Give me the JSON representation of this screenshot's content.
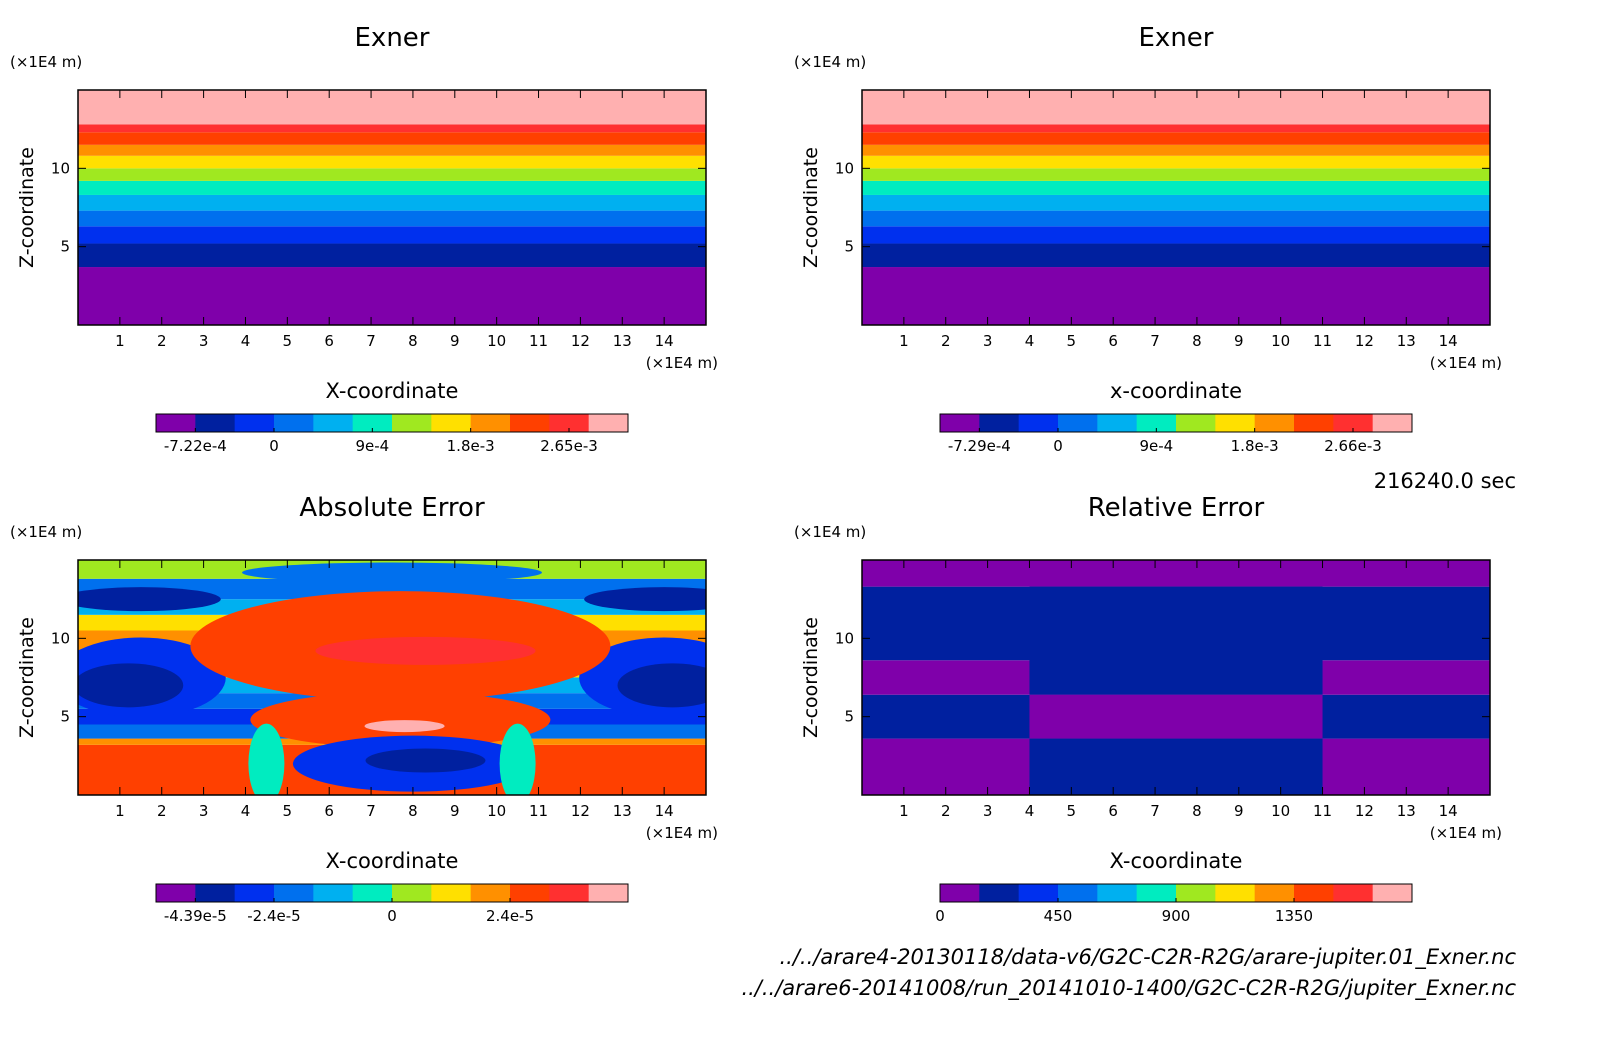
{
  "time_label": "216240.0 sec",
  "files": [
    "../../arare4-20130118/data-v6/G2C-C2R-R2G/arare-jupiter.01_Exner.nc",
    "../../arare6-20141008/run_20141010-1400/G2C-C2R-R2G/jupiter_Exner.nc"
  ],
  "palette": [
    "#7f00aa",
    "#00209f",
    "#0030ee",
    "#0070ee",
    "#00b0f0",
    "#00ecc0",
    "#a0e820",
    "#ffe000",
    "#ff9000",
    "#ff4000",
    "#ff3030",
    "#ffb0b0"
  ],
  "chart_data": [
    {
      "type": "heatmap",
      "title": "Exner",
      "xlabel": "X-coordinate",
      "ylabel": "Z-coordinate",
      "x_unit": "(×1E4 m)",
      "y_unit": "(×1E4 m)",
      "xlim": [
        0,
        15
      ],
      "ylim": [
        0,
        15
      ],
      "x_ticks": [
        1,
        2,
        3,
        4,
        5,
        6,
        7,
        8,
        9,
        10,
        11,
        12,
        13,
        14
      ],
      "y_ticks": [
        5,
        10
      ],
      "colorbar_ticks": [
        "-7.22e-4",
        "0",
        "9e-4",
        "1.8e-3",
        "2.65e-3"
      ],
      "levels": [
        0,
        1,
        2,
        3,
        4,
        5,
        6,
        7,
        8,
        9,
        10,
        11
      ],
      "bands": [
        {
          "z0": 0,
          "z1": 3.7,
          "level": 0
        },
        {
          "z0": 3.7,
          "z1": 5.2,
          "level": 1
        },
        {
          "z0": 5.2,
          "z1": 6.3,
          "level": 2
        },
        {
          "z0": 6.3,
          "z1": 7.3,
          "level": 3
        },
        {
          "z0": 7.3,
          "z1": 8.3,
          "level": 4
        },
        {
          "z0": 8.3,
          "z1": 9.2,
          "level": 5
        },
        {
          "z0": 9.2,
          "z1": 10.0,
          "level": 6
        },
        {
          "z0": 10.0,
          "z1": 10.8,
          "level": 7
        },
        {
          "z0": 10.8,
          "z1": 11.5,
          "level": 8
        },
        {
          "z0": 11.5,
          "z1": 12.3,
          "level": 9
        },
        {
          "z0": 12.3,
          "z1": 12.8,
          "level": 10
        },
        {
          "z0": 12.8,
          "z1": 15,
          "level": 11
        }
      ]
    },
    {
      "type": "heatmap",
      "title": "Exner",
      "xlabel": "x-coordinate",
      "ylabel": "Z-coordinate",
      "x_unit": "(×1E4 m)",
      "y_unit": "(×1E4 m)",
      "xlim": [
        0,
        15
      ],
      "ylim": [
        0,
        15
      ],
      "x_ticks": [
        1,
        2,
        3,
        4,
        5,
        6,
        7,
        8,
        9,
        10,
        11,
        12,
        13,
        14
      ],
      "y_ticks": [
        5,
        10
      ],
      "colorbar_ticks": [
        "-7.29e-4",
        "0",
        "9e-4",
        "1.8e-3",
        "2.66e-3"
      ],
      "levels": [
        0,
        1,
        2,
        3,
        4,
        5,
        6,
        7,
        8,
        9,
        10,
        11
      ],
      "bands": [
        {
          "z0": 0,
          "z1": 3.7,
          "level": 0
        },
        {
          "z0": 3.7,
          "z1": 5.2,
          "level": 1
        },
        {
          "z0": 5.2,
          "z1": 6.3,
          "level": 2
        },
        {
          "z0": 6.3,
          "z1": 7.3,
          "level": 3
        },
        {
          "z0": 7.3,
          "z1": 8.3,
          "level": 4
        },
        {
          "z0": 8.3,
          "z1": 9.2,
          "level": 5
        },
        {
          "z0": 9.2,
          "z1": 10.0,
          "level": 6
        },
        {
          "z0": 10.0,
          "z1": 10.8,
          "level": 7
        },
        {
          "z0": 10.8,
          "z1": 11.5,
          "level": 8
        },
        {
          "z0": 11.5,
          "z1": 12.3,
          "level": 9
        },
        {
          "z0": 12.3,
          "z1": 12.8,
          "level": 10
        },
        {
          "z0": 12.8,
          "z1": 15,
          "level": 11
        }
      ]
    },
    {
      "type": "heatmap",
      "title": "Absolute Error",
      "xlabel": "X-coordinate",
      "ylabel": "Z-coordinate",
      "x_unit": "(×1E4 m)",
      "y_unit": "(×1E4 m)",
      "xlim": [
        0,
        15
      ],
      "ylim": [
        0,
        15
      ],
      "x_ticks": [
        1,
        2,
        3,
        4,
        5,
        6,
        7,
        8,
        9,
        10,
        11,
        12,
        13,
        14
      ],
      "y_ticks": [
        5,
        10
      ],
      "colorbar_ticks": [
        "-4.39e-5",
        "-2.4e-5",
        "0",
        "2.4e-5"
      ],
      "levels": [
        0,
        1,
        2,
        3,
        4,
        5,
        6,
        7,
        8,
        9,
        10,
        11
      ],
      "bands": [
        {
          "z0": 0,
          "z1": 3.2,
          "level": 9
        },
        {
          "z0": 3.2,
          "z1": 3.6,
          "level": 8
        },
        {
          "z0": 3.6,
          "z1": 4.5,
          "level": 3
        },
        {
          "z0": 4.5,
          "z1": 5.5,
          "level": 2
        },
        {
          "z0": 5.5,
          "z1": 6.5,
          "level": 3
        },
        {
          "z0": 6.5,
          "z1": 7.5,
          "level": 4
        },
        {
          "z0": 7.5,
          "z1": 8.5,
          "level": 7
        },
        {
          "z0": 8.5,
          "z1": 10.5,
          "level": 8
        },
        {
          "z0": 10.5,
          "z1": 11.5,
          "level": 7
        },
        {
          "z0": 11.5,
          "z1": 12.5,
          "level": 4
        },
        {
          "z0": 12.5,
          "z1": 13.8,
          "level": 3
        },
        {
          "z0": 13.8,
          "z1": 15,
          "level": 6
        }
      ]
    },
    {
      "type": "heatmap",
      "title": "Relative Error",
      "xlabel": "X-coordinate",
      "ylabel": "Z-coordinate",
      "x_unit": "(×1E4 m)",
      "y_unit": "(×1E4 m)",
      "xlim": [
        0,
        15
      ],
      "ylim": [
        0,
        15
      ],
      "x_ticks": [
        1,
        2,
        3,
        4,
        5,
        6,
        7,
        8,
        9,
        10,
        11,
        12,
        13,
        14
      ],
      "y_ticks": [
        5,
        10
      ],
      "colorbar_ticks": [
        "0",
        "450",
        "900",
        "1350"
      ],
      "levels": [
        0,
        1,
        2,
        3,
        4,
        5,
        6,
        7,
        8,
        9,
        10,
        11
      ],
      "bands": [
        {
          "z0": 0,
          "z1": 3.6,
          "level": 0
        },
        {
          "z0": 3.6,
          "z1": 6.4,
          "level": 1
        },
        {
          "z0": 6.4,
          "z1": 8.6,
          "level": 0
        },
        {
          "z0": 8.6,
          "z1": 13.3,
          "level": 1
        },
        {
          "z0": 13.3,
          "z1": 15,
          "level": 0
        }
      ]
    }
  ]
}
